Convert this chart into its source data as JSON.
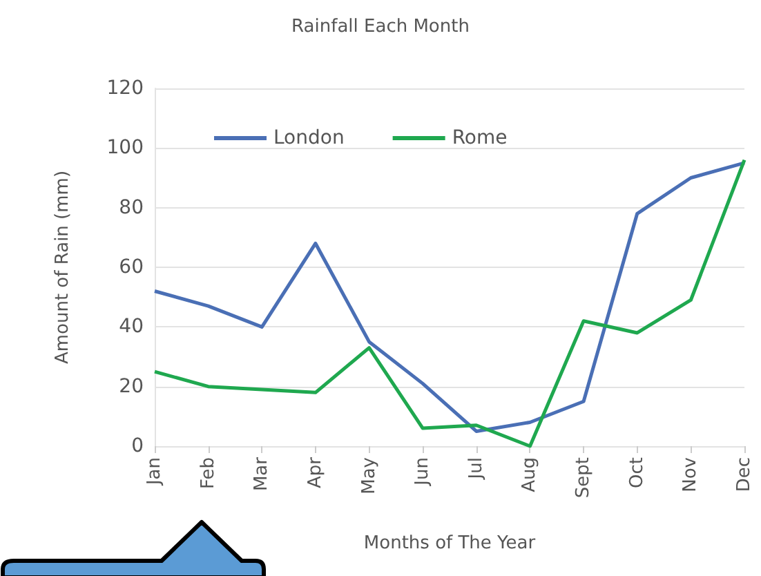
{
  "chart_data": {
    "type": "line",
    "title": "Rainfall Each Month",
    "xlabel": "Months of The Year",
    "ylabel": "Amount of Rain (mm)",
    "categories": [
      "Jan",
      "Feb",
      "Mar",
      "Apr",
      "May",
      "Jun",
      "Jul",
      "Aug",
      "Sept",
      "Oct",
      "Nov",
      "Dec"
    ],
    "series": [
      {
        "name": "London",
        "color": "#4a6fb5",
        "values": [
          52,
          47,
          40,
          68,
          35,
          21,
          5,
          8,
          15,
          78,
          90,
          95
        ]
      },
      {
        "name": "Rome",
        "color": "#1fa84f",
        "values": [
          25,
          20,
          19,
          18,
          33,
          6,
          7,
          0,
          42,
          38,
          49,
          96
        ]
      }
    ],
    "ylim": [
      0,
      120
    ],
    "yticks": [
      0,
      20,
      40,
      60,
      80,
      100,
      120
    ],
    "grid": "y",
    "legend": "top left",
    "marker": "none",
    "line_style": "solid"
  }
}
